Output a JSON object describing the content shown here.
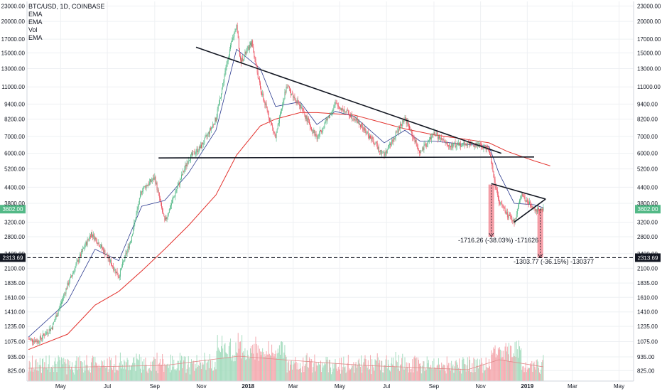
{
  "legend": {
    "title": "BTC/USD, 1D, COINBASE",
    "lines": [
      "EMA",
      "EMA",
      "Vol",
      "EMA"
    ]
  },
  "colors": {
    "up": "#53b987",
    "down": "#eb4d5c",
    "ema_fast": "#2b3a8f",
    "ema_slow": "#e3342f",
    "price_badge": "#53b987",
    "level_badge": "#131722",
    "vol_up": "#a5dcbf",
    "vol_down": "#f4a7ad"
  },
  "chart_data": {
    "type": "candlestick",
    "title": "BTC/USD, 1D, COINBASE",
    "y_scale": "log",
    "y_ticks": [
      "23000.00",
      "20000.00",
      "17000.00",
      "15000.00",
      "13000.00",
      "11000.00",
      "9400.00",
      "8200.00",
      "7000.00",
      "6000.00",
      "5200.00",
      "4400.00",
      "3800.00",
      "3200.00",
      "2800.00",
      "2400.00",
      "2100.00",
      "1835.00",
      "1610.00",
      "1410.00",
      "1235.00",
      "1075.00",
      "935.00",
      "825.00"
    ],
    "x_ticks": [
      "May",
      "Jul",
      "Sep",
      "Nov",
      "2018",
      "Mar",
      "May",
      "Jul",
      "Sep",
      "Nov",
      "2019",
      "Mar",
      "May"
    ],
    "last_price": "3602.00",
    "level_line": "2313.69",
    "annotations": [
      "-1716.26 (-38.03%) -171626",
      "-1303.77 (-36.15%) -130377"
    ],
    "price_path": [
      [
        "2017-03-20",
        1100
      ],
      [
        "2017-04-01",
        1080
      ],
      [
        "2017-04-20",
        1230
      ],
      [
        "2017-05-10",
        1800
      ],
      [
        "2017-05-25",
        2300
      ],
      [
        "2017-06-10",
        2900
      ],
      [
        "2017-06-25",
        2500
      ],
      [
        "2017-07-16",
        1950
      ],
      [
        "2017-08-01",
        2750
      ],
      [
        "2017-08-15",
        4300
      ],
      [
        "2017-09-01",
        4800
      ],
      [
        "2017-09-14",
        3200
      ],
      [
        "2017-09-30",
        4350
      ],
      [
        "2017-10-15",
        5700
      ],
      [
        "2017-11-01",
        6400
      ],
      [
        "2017-11-20",
        8200
      ],
      [
        "2017-12-07",
        15000
      ],
      [
        "2017-12-17",
        19500
      ],
      [
        "2017-12-22",
        13800
      ],
      [
        "2018-01-06",
        16500
      ],
      [
        "2018-01-17",
        10800
      ],
      [
        "2018-02-06",
        6900
      ],
      [
        "2018-02-20",
        11100
      ],
      [
        "2018-03-10",
        9200
      ],
      [
        "2018-04-01",
        6900
      ],
      [
        "2018-04-25",
        9400
      ],
      [
        "2018-05-20",
        8300
      ],
      [
        "2018-06-28",
        5900
      ],
      [
        "2018-07-25",
        8300
      ],
      [
        "2018-08-14",
        6000
      ],
      [
        "2018-09-01",
        7200
      ],
      [
        "2018-09-20",
        6400
      ],
      [
        "2018-10-15",
        6600
      ],
      [
        "2018-11-12",
        6300
      ],
      [
        "2018-11-20",
        4500
      ],
      [
        "2018-11-25",
        3900
      ],
      [
        "2018-12-06",
        3400
      ],
      [
        "2018-12-15",
        3200
      ],
      [
        "2018-12-24",
        4100
      ],
      [
        "2019-01-10",
        3600
      ],
      [
        "2019-01-22",
        3602
      ]
    ],
    "ema_fast": [
      [
        "2017-03-20",
        1120
      ],
      [
        "2017-05-10",
        1550
      ],
      [
        "2017-06-15",
        2500
      ],
      [
        "2017-07-16",
        2250
      ],
      [
        "2017-08-15",
        3700
      ],
      [
        "2017-09-14",
        3900
      ],
      [
        "2017-10-15",
        5000
      ],
      [
        "2017-11-20",
        7400
      ],
      [
        "2017-12-17",
        15500
      ],
      [
        "2018-01-17",
        13000
      ],
      [
        "2018-02-06",
        9200
      ],
      [
        "2018-03-10",
        9600
      ],
      [
        "2018-04-01",
        7800
      ],
      [
        "2018-04-25",
        8800
      ],
      [
        "2018-05-20",
        8400
      ],
      [
        "2018-06-28",
        6600
      ],
      [
        "2018-07-25",
        7400
      ],
      [
        "2018-08-14",
        6700
      ],
      [
        "2018-09-01",
        6700
      ],
      [
        "2018-10-15",
        6500
      ],
      [
        "2018-11-12",
        6400
      ],
      [
        "2018-11-25",
        5000
      ],
      [
        "2018-12-15",
        3800
      ],
      [
        "2019-01-10",
        3750
      ],
      [
        "2019-01-22",
        3650
      ]
    ],
    "ema_slow": [
      [
        "2017-03-20",
        1000
      ],
      [
        "2017-05-10",
        1150
      ],
      [
        "2017-06-15",
        1500
      ],
      [
        "2017-07-16",
        1700
      ],
      [
        "2017-08-15",
        2050
      ],
      [
        "2017-09-14",
        2500
      ],
      [
        "2017-10-15",
        3100
      ],
      [
        "2017-11-20",
        4100
      ],
      [
        "2017-12-17",
        5900
      ],
      [
        "2018-01-17",
        7700
      ],
      [
        "2018-02-06",
        8200
      ],
      [
        "2018-03-10",
        8700
      ],
      [
        "2018-04-01",
        8700
      ],
      [
        "2018-05-20",
        8500
      ],
      [
        "2018-06-28",
        7900
      ],
      [
        "2018-07-25",
        7500
      ],
      [
        "2018-09-01",
        7100
      ],
      [
        "2018-10-15",
        6800
      ],
      [
        "2018-11-12",
        6600
      ],
      [
        "2018-12-06",
        6100
      ],
      [
        "2019-01-10",
        5600
      ],
      [
        "2019-01-31",
        5350
      ]
    ],
    "trendlines": [
      {
        "from": [
          "2017-09-06",
          5750
        ],
        "to": [
          "2019-01-10",
          5800
        ]
      },
      {
        "from": [
          "2017-10-25",
          15800
        ],
        "to": [
          "2018-11-28",
          6000
        ]
      },
      {
        "from": [
          "2018-11-15",
          4550
        ],
        "to": [
          "2019-01-25",
          3950
        ]
      },
      {
        "from": [
          "2018-12-15",
          3200
        ],
        "to": [
          "2019-01-25",
          3950
        ]
      }
    ],
    "measures": [
      {
        "from": [
          "2018-11-15",
          4510
        ],
        "to": [
          "2018-11-15",
          2800
        ]
      },
      {
        "from": [
          "2019-01-18",
          3610
        ],
        "to": [
          "2019-01-18",
          2313.69
        ]
      }
    ],
    "x_range": [
      "2017-03-18",
      "2019-05-20"
    ],
    "y_range": [
      750,
      24000
    ]
  }
}
